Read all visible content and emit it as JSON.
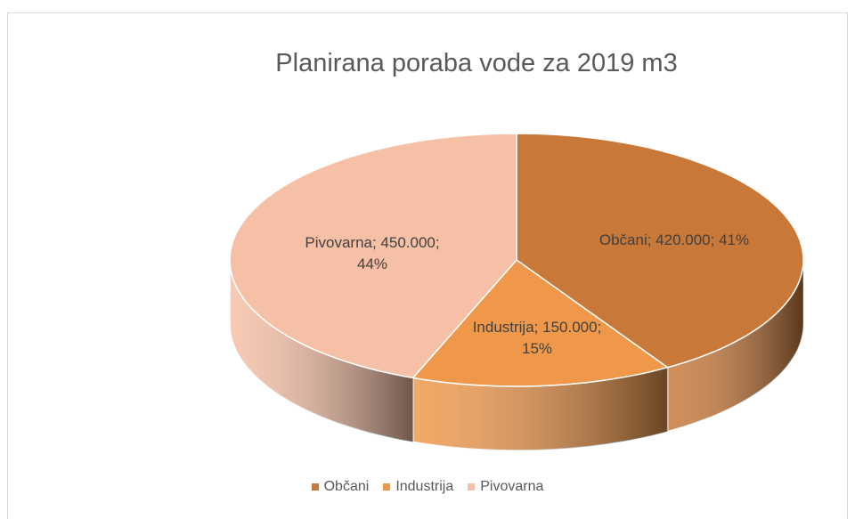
{
  "chart_data": {
    "type": "pie3d",
    "title": "Planirana poraba vode za 2019 m3",
    "categories": [
      "Občani",
      "Industrija",
      "Pivovarna"
    ],
    "values": [
      420000,
      150000,
      450000
    ],
    "value_labels": [
      "Občani; 420.000; 41%",
      "Industrija; 150.000; 15%",
      "Pivovarna; 450.000; 44%"
    ],
    "colors": [
      "#c8793a",
      "#f0984a",
      "#f6c0a6"
    ],
    "legend": "bottom"
  }
}
